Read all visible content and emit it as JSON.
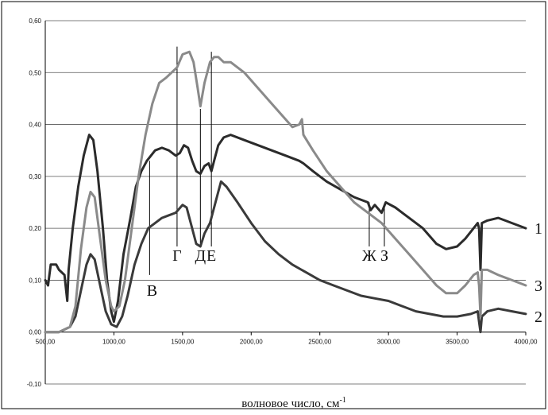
{
  "chart_data": {
    "type": "line",
    "title": "",
    "xlabel": "волновое число, см",
    "xlabel_superscript": "-1",
    "ylabel": "",
    "xlim": [
      500,
      4000
    ],
    "ylim": [
      -0.1,
      0.6
    ],
    "x_ticks": [
      500,
      1000,
      1500,
      2000,
      2500,
      3000,
      3500,
      4000
    ],
    "x_tick_labels": [
      "500,00",
      "1000,00",
      "1500,00",
      "2000,00",
      "2500,00",
      "3000,00",
      "3500,00",
      "4000,00"
    ],
    "y_ticks": [
      -0.1,
      0,
      0.1,
      0.2,
      0.3,
      0.4,
      0.5,
      0.6
    ],
    "y_tick_labels": [
      "-0,10",
      "0,00",
      "0,10",
      "0,20",
      "0,30",
      "0,40",
      "0,50",
      "0,60"
    ],
    "grid": "horizontal",
    "legend": "none",
    "series": [
      {
        "name": "1",
        "color": "#2b2b2b",
        "points": [
          [
            500,
            0.1
          ],
          [
            520,
            0.09
          ],
          [
            540,
            0.13
          ],
          [
            560,
            0.13
          ],
          [
            580,
            0.13
          ],
          [
            600,
            0.12
          ],
          [
            640,
            0.11
          ],
          [
            660,
            0.06
          ],
          [
            670,
            0.12
          ],
          [
            700,
            0.2
          ],
          [
            740,
            0.28
          ],
          [
            780,
            0.34
          ],
          [
            820,
            0.38
          ],
          [
            850,
            0.37
          ],
          [
            880,
            0.31
          ],
          [
            920,
            0.2
          ],
          [
            950,
            0.1
          ],
          [
            980,
            0.04
          ],
          [
            1000,
            0.02
          ],
          [
            1030,
            0.06
          ],
          [
            1070,
            0.15
          ],
          [
            1120,
            0.22
          ],
          [
            1160,
            0.28
          ],
          [
            1200,
            0.31
          ],
          [
            1240,
            0.33
          ],
          [
            1300,
            0.35
          ],
          [
            1350,
            0.355
          ],
          [
            1400,
            0.35
          ],
          [
            1450,
            0.34
          ],
          [
            1480,
            0.345
          ],
          [
            1510,
            0.36
          ],
          [
            1540,
            0.355
          ],
          [
            1570,
            0.33
          ],
          [
            1600,
            0.31
          ],
          [
            1630,
            0.305
          ],
          [
            1660,
            0.32
          ],
          [
            1690,
            0.325
          ],
          [
            1710,
            0.31
          ],
          [
            1730,
            0.33
          ],
          [
            1760,
            0.36
          ],
          [
            1800,
            0.375
          ],
          [
            1850,
            0.38
          ],
          [
            1950,
            0.37
          ],
          [
            2050,
            0.36
          ],
          [
            2150,
            0.35
          ],
          [
            2250,
            0.34
          ],
          [
            2350,
            0.33
          ],
          [
            2380,
            0.325
          ],
          [
            2450,
            0.31
          ],
          [
            2550,
            0.29
          ],
          [
            2650,
            0.275
          ],
          [
            2750,
            0.26
          ],
          [
            2850,
            0.25
          ],
          [
            2870,
            0.235
          ],
          [
            2900,
            0.245
          ],
          [
            2950,
            0.23
          ],
          [
            2980,
            0.25
          ],
          [
            3050,
            0.24
          ],
          [
            3150,
            0.22
          ],
          [
            3250,
            0.2
          ],
          [
            3350,
            0.17
          ],
          [
            3420,
            0.16
          ],
          [
            3500,
            0.165
          ],
          [
            3560,
            0.18
          ],
          [
            3620,
            0.2
          ],
          [
            3650,
            0.21
          ],
          [
            3660,
            0.2
          ],
          [
            3670,
            0.12
          ],
          [
            3680,
            0.21
          ],
          [
            3720,
            0.215
          ],
          [
            3800,
            0.22
          ],
          [
            3900,
            0.21
          ],
          [
            4000,
            0.2
          ]
        ]
      },
      {
        "name": "2",
        "color": "#3a3a3a",
        "points": [
          [
            500,
            0.0
          ],
          [
            600,
            0.0
          ],
          [
            680,
            0.01
          ],
          [
            720,
            0.03
          ],
          [
            760,
            0.08
          ],
          [
            800,
            0.13
          ],
          [
            830,
            0.15
          ],
          [
            860,
            0.14
          ],
          [
            900,
            0.09
          ],
          [
            940,
            0.04
          ],
          [
            980,
            0.015
          ],
          [
            1020,
            0.01
          ],
          [
            1060,
            0.03
          ],
          [
            1100,
            0.07
          ],
          [
            1150,
            0.13
          ],
          [
            1200,
            0.17
          ],
          [
            1250,
            0.2
          ],
          [
            1300,
            0.21
          ],
          [
            1350,
            0.22
          ],
          [
            1400,
            0.225
          ],
          [
            1450,
            0.23
          ],
          [
            1500,
            0.245
          ],
          [
            1530,
            0.24
          ],
          [
            1560,
            0.21
          ],
          [
            1600,
            0.17
          ],
          [
            1630,
            0.165
          ],
          [
            1660,
            0.19
          ],
          [
            1700,
            0.21
          ],
          [
            1730,
            0.24
          ],
          [
            1760,
            0.27
          ],
          [
            1780,
            0.29
          ],
          [
            1820,
            0.28
          ],
          [
            1900,
            0.25
          ],
          [
            2000,
            0.21
          ],
          [
            2100,
            0.175
          ],
          [
            2200,
            0.15
          ],
          [
            2300,
            0.13
          ],
          [
            2400,
            0.115
          ],
          [
            2500,
            0.1
          ],
          [
            2600,
            0.09
          ],
          [
            2700,
            0.08
          ],
          [
            2800,
            0.07
          ],
          [
            2900,
            0.065
          ],
          [
            3000,
            0.06
          ],
          [
            3100,
            0.05
          ],
          [
            3200,
            0.04
          ],
          [
            3300,
            0.035
          ],
          [
            3400,
            0.03
          ],
          [
            3500,
            0.03
          ],
          [
            3600,
            0.035
          ],
          [
            3650,
            0.04
          ],
          [
            3660,
            0.02
          ],
          [
            3670,
            0.0
          ],
          [
            3680,
            0.03
          ],
          [
            3720,
            0.04
          ],
          [
            3800,
            0.045
          ],
          [
            3900,
            0.04
          ],
          [
            4000,
            0.035
          ]
        ]
      },
      {
        "name": "3",
        "color": "#8a8a8a",
        "points": [
          [
            500,
            0.0
          ],
          [
            600,
            0.0
          ],
          [
            680,
            0.01
          ],
          [
            720,
            0.05
          ],
          [
            760,
            0.16
          ],
          [
            800,
            0.24
          ],
          [
            830,
            0.27
          ],
          [
            860,
            0.26
          ],
          [
            900,
            0.18
          ],
          [
            940,
            0.1
          ],
          [
            980,
            0.05
          ],
          [
            1000,
            0.04
          ],
          [
            1040,
            0.05
          ],
          [
            1080,
            0.1
          ],
          [
            1130,
            0.2
          ],
          [
            1180,
            0.3
          ],
          [
            1230,
            0.38
          ],
          [
            1280,
            0.44
          ],
          [
            1330,
            0.48
          ],
          [
            1380,
            0.49
          ],
          [
            1420,
            0.5
          ],
          [
            1460,
            0.51
          ],
          [
            1500,
            0.535
          ],
          [
            1550,
            0.54
          ],
          [
            1580,
            0.52
          ],
          [
            1610,
            0.47
          ],
          [
            1630,
            0.435
          ],
          [
            1660,
            0.48
          ],
          [
            1700,
            0.52
          ],
          [
            1730,
            0.53
          ],
          [
            1760,
            0.53
          ],
          [
            1800,
            0.52
          ],
          [
            1850,
            0.52
          ],
          [
            1950,
            0.5
          ],
          [
            2050,
            0.47
          ],
          [
            2150,
            0.44
          ],
          [
            2250,
            0.41
          ],
          [
            2300,
            0.395
          ],
          [
            2350,
            0.4
          ],
          [
            2370,
            0.41
          ],
          [
            2380,
            0.38
          ],
          [
            2450,
            0.35
          ],
          [
            2550,
            0.31
          ],
          [
            2650,
            0.28
          ],
          [
            2750,
            0.25
          ],
          [
            2850,
            0.23
          ],
          [
            2950,
            0.21
          ],
          [
            3050,
            0.18
          ],
          [
            3150,
            0.15
          ],
          [
            3250,
            0.12
          ],
          [
            3350,
            0.09
          ],
          [
            3420,
            0.075
          ],
          [
            3500,
            0.075
          ],
          [
            3560,
            0.09
          ],
          [
            3620,
            0.11
          ],
          [
            3650,
            0.115
          ],
          [
            3660,
            0.09
          ],
          [
            3670,
            0.03
          ],
          [
            3680,
            0.12
          ],
          [
            3720,
            0.12
          ],
          [
            3800,
            0.11
          ],
          [
            3900,
            0.1
          ],
          [
            4000,
            0.09
          ]
        ]
      }
    ],
    "series_labels": [
      {
        "text": "1",
        "x": 4000,
        "y": 0.2
      },
      {
        "text": "3",
        "x": 4000,
        "y": 0.09
      },
      {
        "text": "2",
        "x": 4000,
        "y": 0.03
      }
    ],
    "annotations": [
      {
        "text": "В",
        "x": 1260,
        "y_top": 0.33,
        "y_bottom": 0.11
      },
      {
        "text": "Г",
        "x": 1460,
        "y_top": 0.55,
        "y_bottom": 0.165
      },
      {
        "text": "Д",
        "x": 1630,
        "y_top": 0.43,
        "y_bottom": 0.165
      },
      {
        "text": "Е",
        "x": 1710,
        "y_top": 0.54,
        "y_bottom": 0.165
      },
      {
        "text": "Ж",
        "x": 2860,
        "y_top": 0.25,
        "y_bottom": 0.165
      },
      {
        "text": "З",
        "x": 2970,
        "y_top": 0.245,
        "y_bottom": 0.165
      }
    ]
  }
}
